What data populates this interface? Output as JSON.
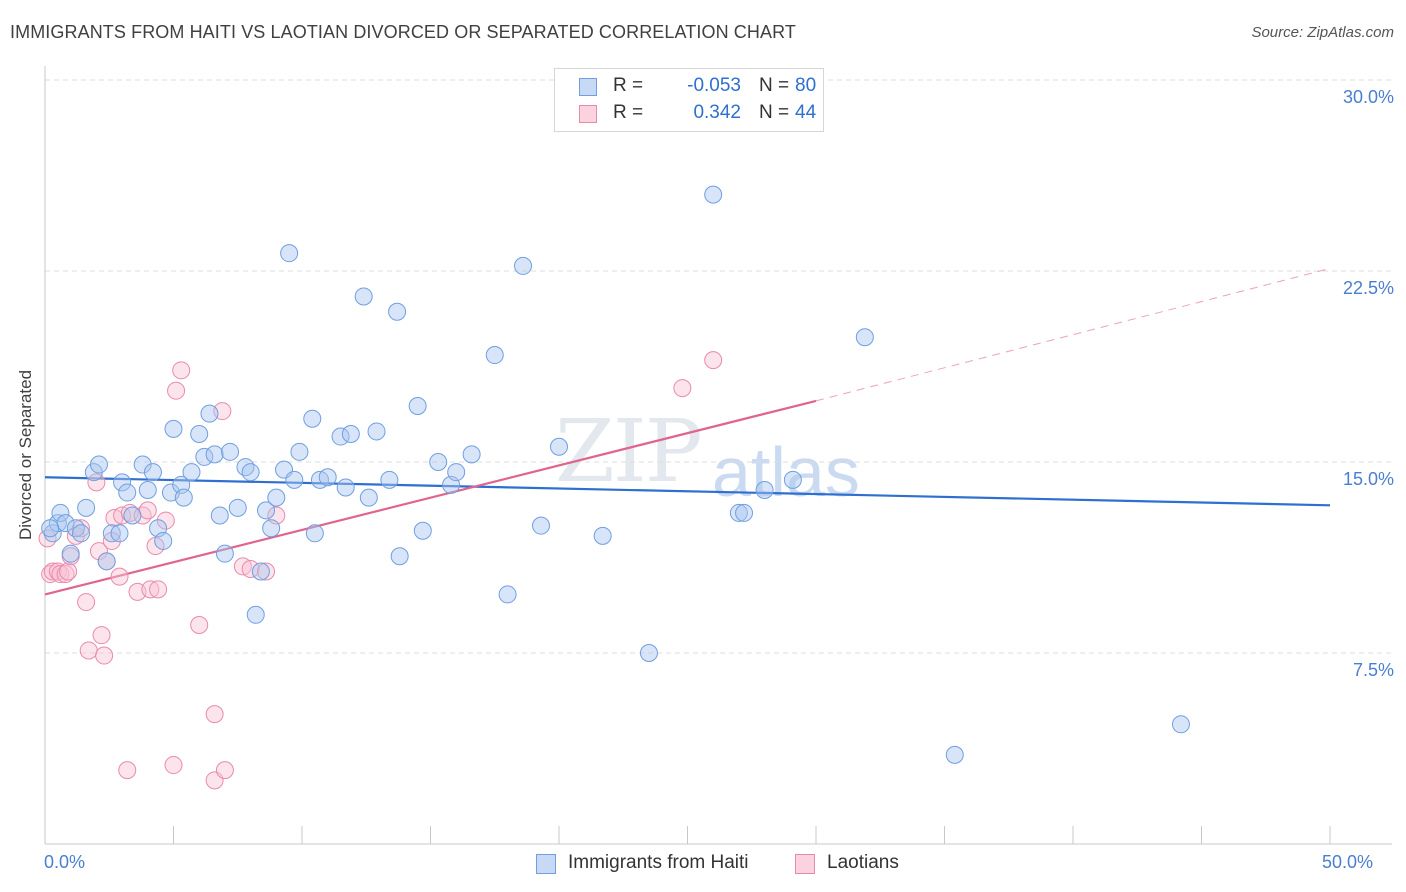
{
  "header": {
    "title": "IMMIGRANTS FROM HAITI VS LAOTIAN DIVORCED OR SEPARATED CORRELATION CHART",
    "source": "Source: ZipAtlas.com"
  },
  "watermark": {
    "zip": "ZIP",
    "atlas": "atlas"
  },
  "legend": {
    "rows": [
      {
        "r_label": "R =",
        "r_value": "-0.053",
        "n_label": "N =",
        "n_value": "80",
        "color": "#a9c6f0",
        "border": "#6f9fe0"
      },
      {
        "r_label": "R =",
        "r_value": "0.342",
        "n_label": "N =",
        "n_value": "44",
        "color": "#f9c4d4",
        "border": "#ea8aab"
      }
    ]
  },
  "bottom_legend": {
    "series1": "Immigrants from Haiti",
    "series2": "Laotians"
  },
  "colors": {
    "haiti_fill": "rgba(169,198,240,0.45)",
    "haiti_stroke": "#6f9fe0",
    "haiti_line": "#2e6fd0",
    "laotian_fill": "rgba(249,196,212,0.45)",
    "laotian_stroke": "#ea8aab",
    "laotian_line": "#e0658d",
    "grid": "#dcdcdc",
    "tick_label": "#4a7ed0"
  },
  "chart_data": {
    "type": "scatter",
    "title": "IMMIGRANTS FROM HAITI VS LAOTIAN DIVORCED OR SEPARATED CORRELATION CHART",
    "xlabel": "",
    "ylabel": "Divorced or Separated",
    "xlim": [
      0,
      50
    ],
    "ylim": [
      0,
      30
    ],
    "x_tick_labels": [
      "0.0%",
      "50.0%"
    ],
    "y_ticks": [
      7.5,
      15.0,
      22.5,
      30.0
    ],
    "y_tick_labels": [
      "7.5%",
      "15.0%",
      "22.5%",
      "30.0%"
    ],
    "grid": true,
    "legend_position": "top-center",
    "series": [
      {
        "name": "Immigrants from Haiti",
        "points": [
          [
            0.3,
            12.2
          ],
          [
            0.5,
            12.6
          ],
          [
            0.6,
            13.0
          ],
          [
            0.8,
            12.6
          ],
          [
            1.0,
            11.4
          ],
          [
            1.2,
            12.4
          ],
          [
            1.4,
            12.2
          ],
          [
            1.6,
            13.2
          ],
          [
            1.9,
            14.6
          ],
          [
            2.1,
            14.9
          ],
          [
            2.4,
            11.1
          ],
          [
            2.6,
            12.2
          ],
          [
            2.9,
            12.2
          ],
          [
            3.0,
            14.2
          ],
          [
            3.2,
            13.8
          ],
          [
            3.4,
            12.9
          ],
          [
            3.8,
            14.9
          ],
          [
            4.0,
            13.9
          ],
          [
            4.2,
            14.6
          ],
          [
            4.4,
            12.4
          ],
          [
            4.6,
            11.9
          ],
          [
            4.9,
            13.8
          ],
          [
            5.0,
            16.3
          ],
          [
            5.3,
            14.1
          ],
          [
            5.4,
            13.6
          ],
          [
            5.7,
            14.6
          ],
          [
            6.0,
            16.1
          ],
          [
            6.2,
            15.2
          ],
          [
            6.4,
            16.9
          ],
          [
            6.6,
            15.3
          ],
          [
            6.8,
            12.9
          ],
          [
            7.0,
            11.4
          ],
          [
            7.2,
            15.4
          ],
          [
            7.5,
            13.2
          ],
          [
            7.8,
            14.8
          ],
          [
            8.0,
            14.6
          ],
          [
            8.2,
            9.0
          ],
          [
            8.4,
            10.7
          ],
          [
            8.6,
            13.1
          ],
          [
            8.8,
            12.4
          ],
          [
            9.0,
            13.6
          ],
          [
            9.3,
            14.7
          ],
          [
            9.5,
            23.2
          ],
          [
            9.7,
            14.3
          ],
          [
            9.9,
            15.4
          ],
          [
            10.4,
            16.7
          ],
          [
            10.5,
            12.2
          ],
          [
            10.7,
            14.3
          ],
          [
            11.0,
            14.4
          ],
          [
            11.5,
            16.0
          ],
          [
            11.7,
            14.0
          ],
          [
            11.9,
            16.1
          ],
          [
            12.4,
            21.5
          ],
          [
            12.6,
            13.6
          ],
          [
            12.9,
            16.2
          ],
          [
            13.4,
            14.3
          ],
          [
            13.7,
            20.9
          ],
          [
            13.8,
            11.3
          ],
          [
            14.5,
            17.2
          ],
          [
            14.7,
            12.3
          ],
          [
            15.3,
            15.0
          ],
          [
            15.8,
            14.1
          ],
          [
            16.0,
            14.6
          ],
          [
            16.6,
            15.3
          ],
          [
            17.5,
            19.2
          ],
          [
            18.0,
            9.8
          ],
          [
            18.6,
            22.7
          ],
          [
            19.3,
            12.5
          ],
          [
            20.0,
            15.6
          ],
          [
            21.7,
            12.1
          ],
          [
            23.5,
            7.5
          ],
          [
            26.0,
            25.5
          ],
          [
            27.0,
            13.0
          ],
          [
            27.2,
            13.0
          ],
          [
            28.0,
            13.9
          ],
          [
            29.1,
            14.3
          ],
          [
            31.9,
            19.9
          ],
          [
            35.4,
            3.5
          ],
          [
            44.2,
            4.7
          ],
          [
            0.2,
            12.4
          ]
        ]
      },
      {
        "name": "Laotians",
        "points": [
          [
            0.1,
            12.0
          ],
          [
            0.2,
            10.6
          ],
          [
            0.3,
            10.7
          ],
          [
            0.5,
            10.7
          ],
          [
            0.6,
            10.6
          ],
          [
            0.8,
            10.6
          ],
          [
            0.9,
            10.7
          ],
          [
            1.0,
            11.3
          ],
          [
            1.2,
            12.1
          ],
          [
            1.4,
            12.4
          ],
          [
            1.6,
            9.5
          ],
          [
            1.7,
            7.6
          ],
          [
            2.0,
            14.2
          ],
          [
            2.1,
            11.5
          ],
          [
            2.2,
            8.2
          ],
          [
            2.3,
            7.4
          ],
          [
            2.4,
            11.1
          ],
          [
            2.6,
            11.9
          ],
          [
            2.7,
            12.8
          ],
          [
            2.9,
            10.5
          ],
          [
            3.0,
            12.9
          ],
          [
            3.2,
            2.9
          ],
          [
            3.3,
            13.0
          ],
          [
            3.6,
            9.9
          ],
          [
            3.8,
            12.9
          ],
          [
            4.0,
            13.1
          ],
          [
            4.1,
            10.0
          ],
          [
            4.3,
            11.7
          ],
          [
            4.4,
            10.0
          ],
          [
            4.7,
            12.7
          ],
          [
            5.0,
            3.1
          ],
          [
            5.1,
            17.8
          ],
          [
            5.3,
            18.6
          ],
          [
            6.0,
            8.6
          ],
          [
            6.6,
            5.1
          ],
          [
            6.6,
            2.5
          ],
          [
            6.9,
            17.0
          ],
          [
            7.0,
            2.9
          ],
          [
            7.7,
            10.9
          ],
          [
            8.0,
            10.8
          ],
          [
            8.6,
            10.7
          ],
          [
            9.0,
            12.9
          ],
          [
            24.8,
            17.9
          ],
          [
            26.0,
            19.0
          ]
        ]
      }
    ],
    "trend_lines": [
      {
        "series": "Immigrants from Haiti",
        "from": [
          0,
          14.4
        ],
        "to": [
          50,
          13.3
        ]
      },
      {
        "series": "Laotians",
        "from": [
          0,
          9.8
        ],
        "to": [
          30,
          17.4
        ],
        "dashed_to": [
          50,
          22.6
        ]
      }
    ]
  }
}
